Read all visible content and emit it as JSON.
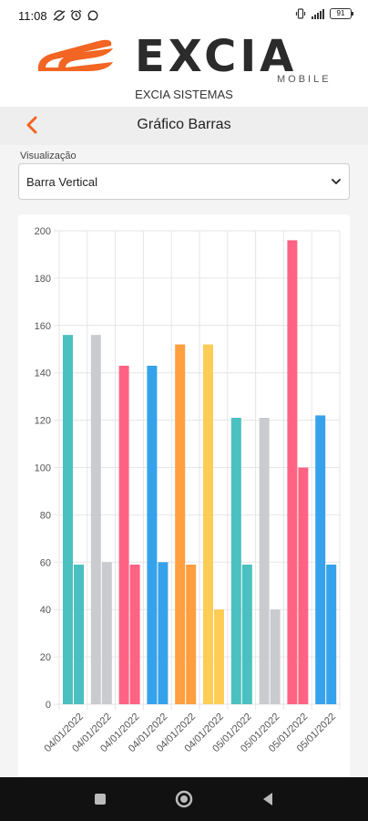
{
  "status_bar": {
    "time": "11:08",
    "left_icons": [
      "sync-off-icon",
      "alarm-icon",
      "whatsapp-icon"
    ],
    "right_icons": [
      "vibrate-icon",
      "signal-icon"
    ],
    "battery": "91"
  },
  "brand": {
    "word": "EXCIA",
    "tagline": "MOBILE",
    "subtitle": "EXCIA SISTEMAS",
    "colors": {
      "orange": "#f26522",
      "dark": "#2b2b2b"
    }
  },
  "header": {
    "title": "Gráfico Barras",
    "back_icon": "chevron-left-icon",
    "accent": "#f26522"
  },
  "form": {
    "label": "Visualização",
    "selected": "Barra Vertical",
    "arrow_icon": "chevron-down-icon"
  },
  "chart_data": {
    "type": "bar",
    "categories": [
      "04/01/2022",
      "04/01/2022",
      "04/01/2022",
      "04/01/2022",
      "04/01/2022",
      "04/01/2022",
      "05/01/2022",
      "05/01/2022",
      "05/01/2022",
      "05/01/2022"
    ],
    "series": [
      {
        "values": [
          156,
          156,
          143,
          143,
          152,
          152,
          121,
          121,
          196,
          122
        ]
      },
      {
        "values": [
          59,
          60,
          59,
          60,
          59,
          40,
          59,
          40,
          100,
          59
        ]
      }
    ],
    "colors": [
      "#4bc0c0",
      "#c9cbcf",
      "#ff6384",
      "#36a2eb",
      "#ff9f40",
      "#ffcd56",
      "#4bc0c0",
      "#c9cbcf",
      "#ff6384",
      "#36a2eb"
    ],
    "ylim": [
      0,
      200
    ],
    "yticks": [
      0,
      20,
      40,
      60,
      80,
      100,
      120,
      140,
      160,
      180,
      200
    ],
    "grid": true,
    "legend": "none"
  },
  "nav_bar": {
    "buttons": [
      "recents-icon",
      "home-icon",
      "back-icon"
    ]
  }
}
